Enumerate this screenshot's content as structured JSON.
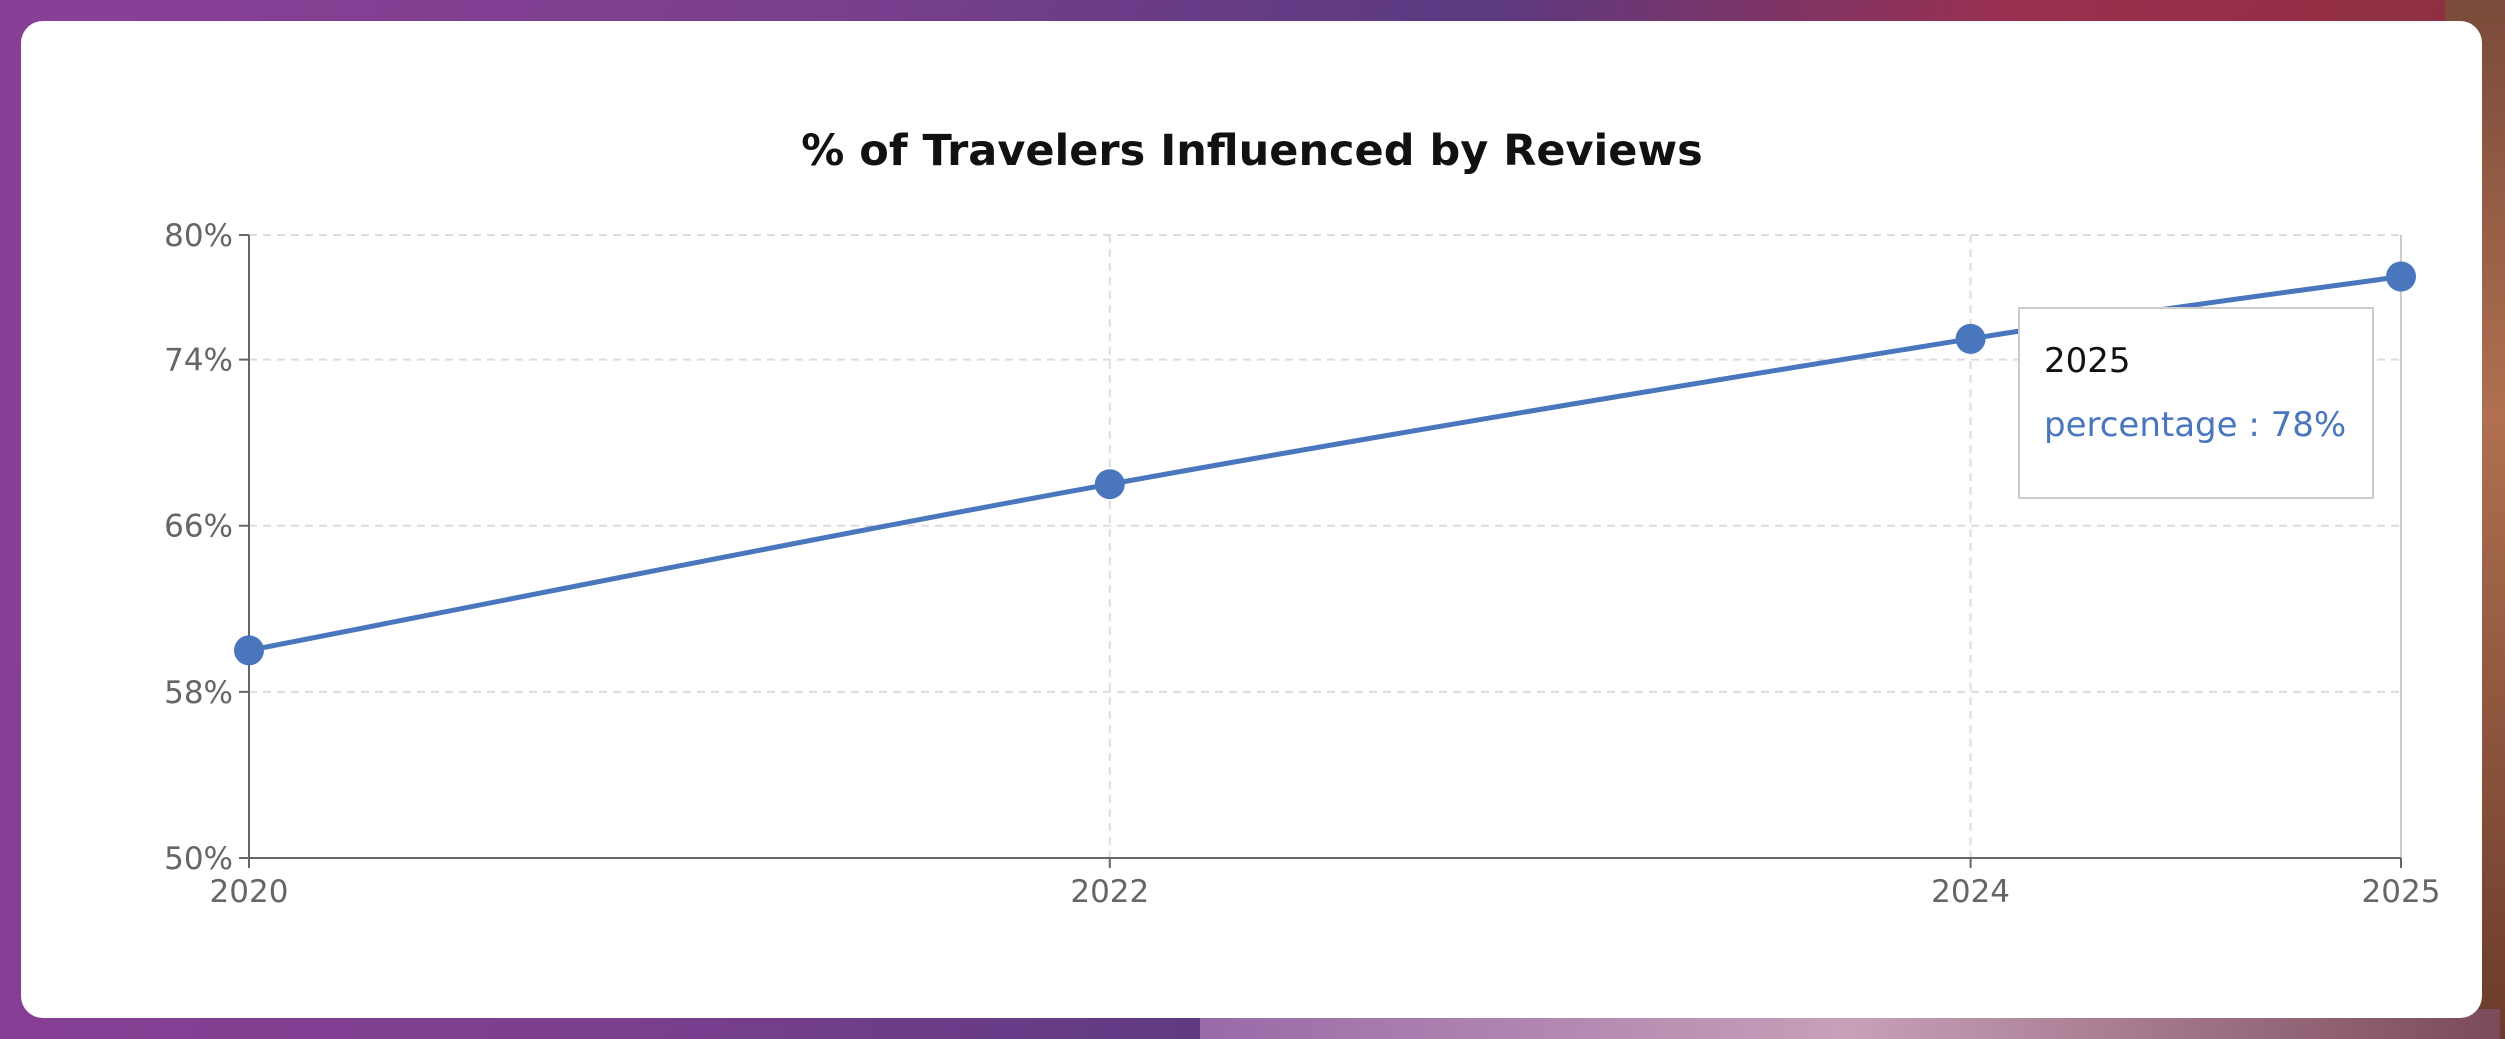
{
  "chart_data": {
    "type": "line",
    "title": "% of Travelers Influenced by Reviews",
    "x": [
      "2020",
      "2022",
      "2024",
      "2025"
    ],
    "series": [
      {
        "name": "percentage",
        "values": [
          60,
          68,
          75,
          78
        ]
      }
    ],
    "ylim": [
      50,
      80
    ],
    "yticks": [
      50,
      58,
      66,
      74,
      80
    ],
    "ytick_labels": [
      "50%",
      "58%",
      "66%",
      "74%",
      "80%"
    ],
    "xlabel": "",
    "ylabel": "",
    "grid": true,
    "color": "#4a76bd"
  },
  "tooltip": {
    "title": "2025",
    "label": "percentage : 78%"
  }
}
